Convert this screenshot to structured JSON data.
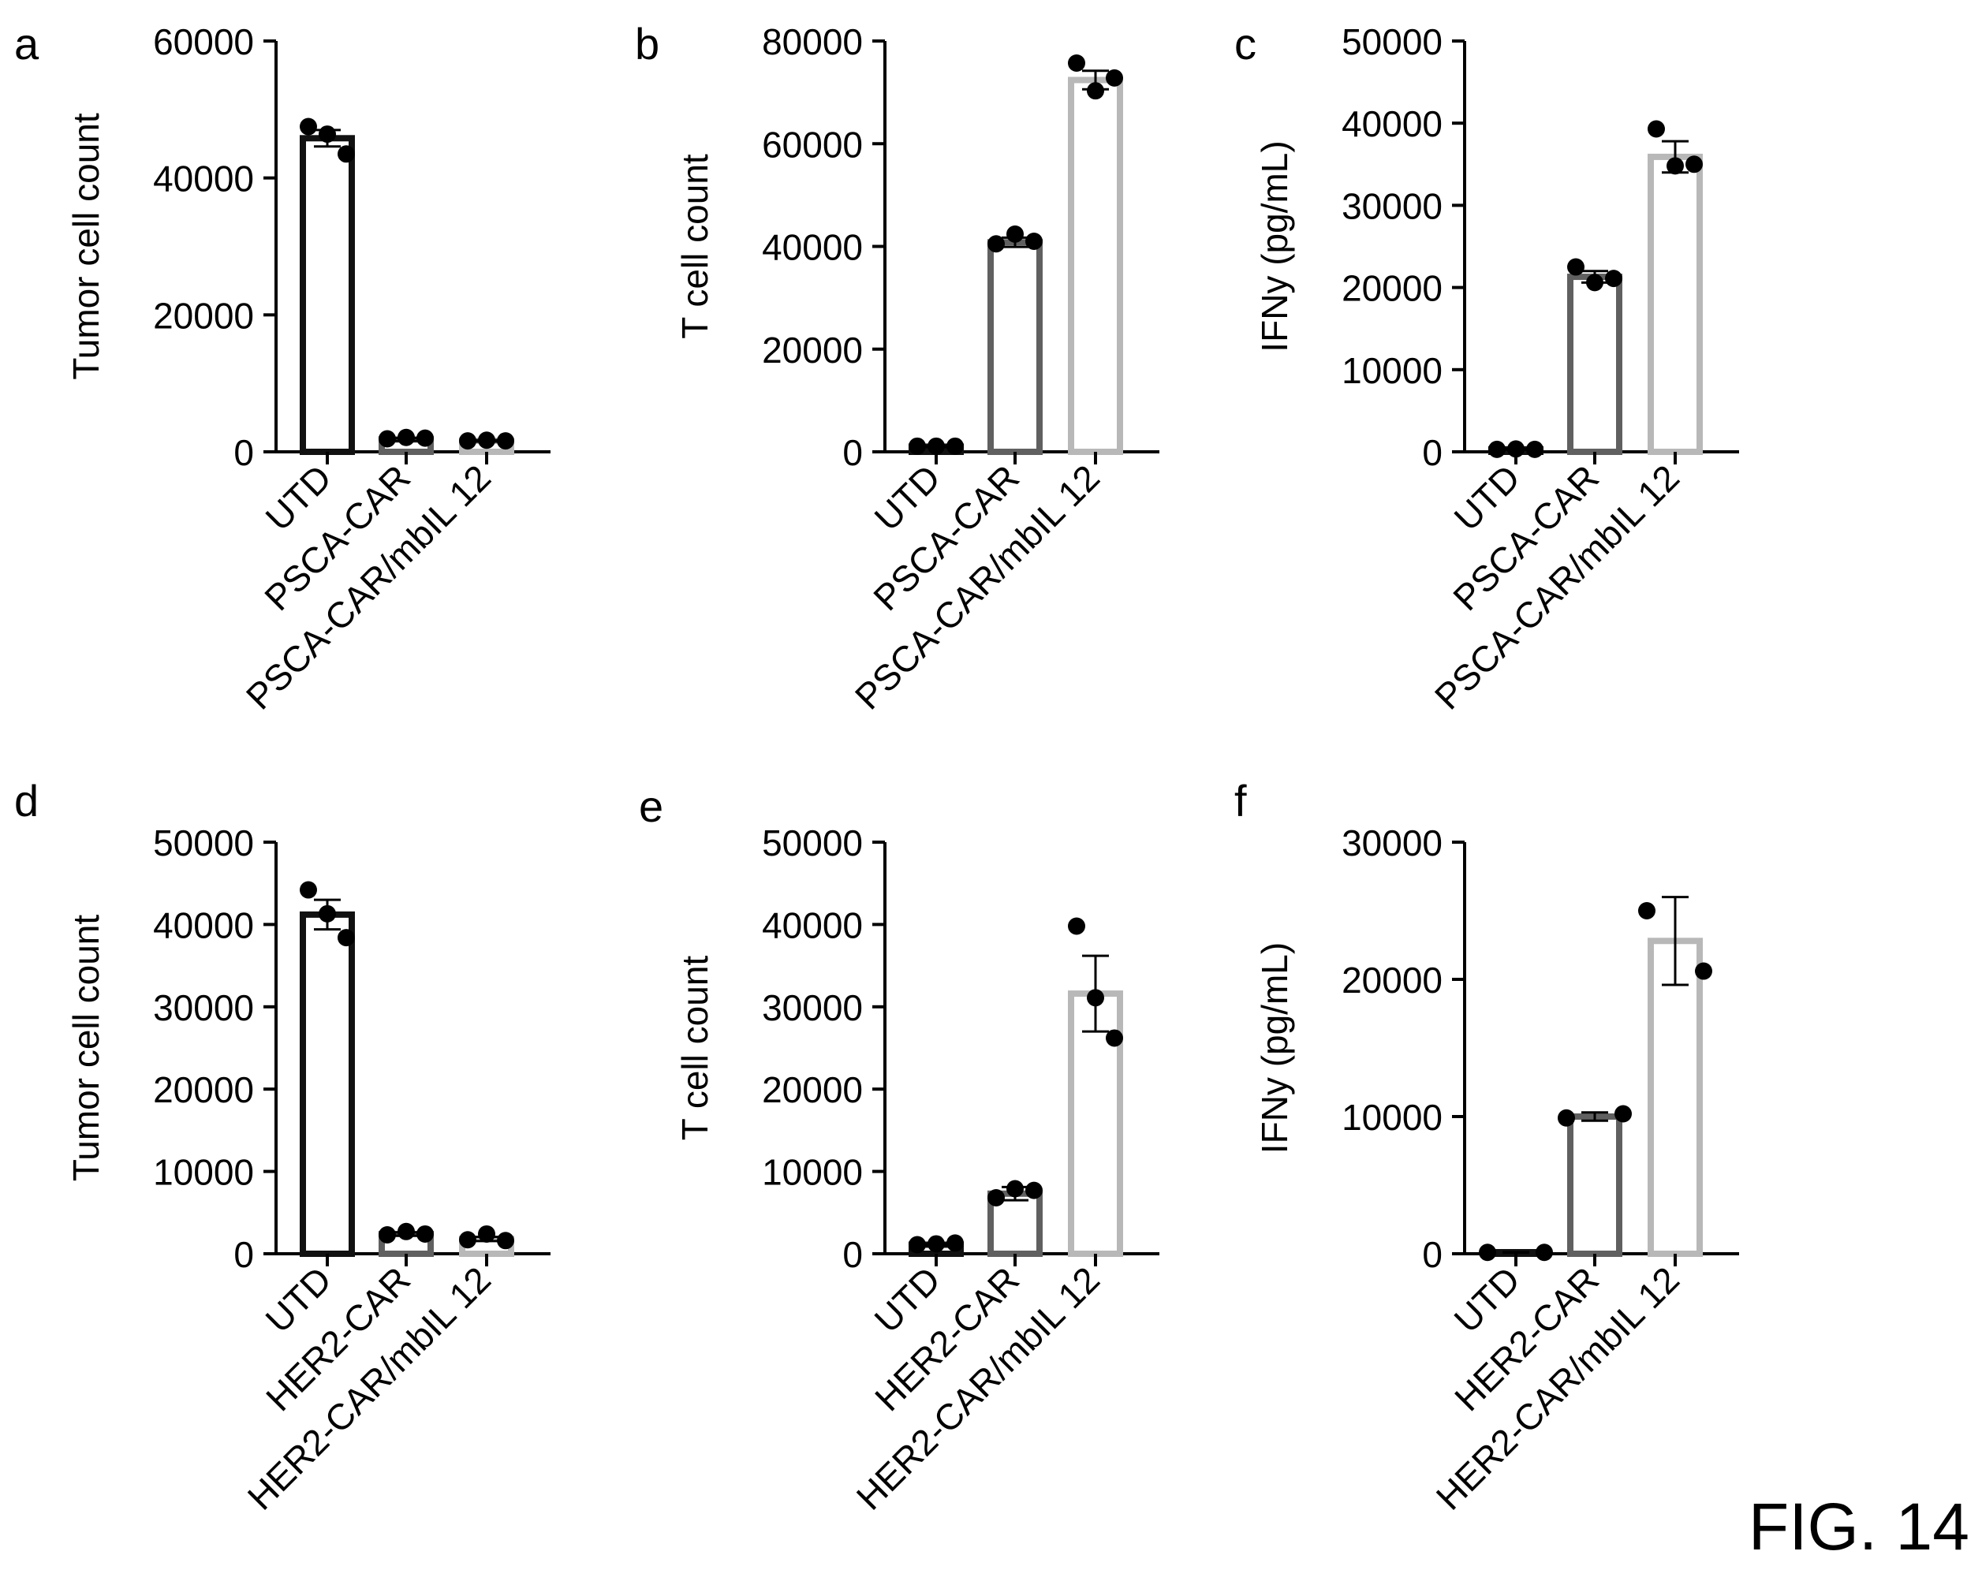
{
  "figure_label": "FIG. 14",
  "styles": {
    "utd_color": "#111111",
    "car_color": "#606060",
    "mbil_color": "#b8b8b8",
    "dot_color": "#000000"
  },
  "chart_data": [
    {
      "panel": "a",
      "type": "bar",
      "ylabel": "Tumor cell count",
      "ylim": [
        0,
        60000
      ],
      "yticks": [
        0,
        20000,
        40000,
        60000
      ],
      "categories": [
        "UTD",
        "PSCA-CAR",
        "PSCA-CAR/mbIL 12"
      ],
      "values": [
        45800,
        1800,
        1600
      ],
      "errors": [
        1200,
        200,
        120
      ],
      "points": [
        [
          47500,
          46400,
          43500
        ],
        [
          1900,
          2100,
          2000
        ],
        [
          1600,
          1700,
          1600
        ]
      ]
    },
    {
      "panel": "b",
      "type": "bar",
      "ylabel": "T cell count",
      "ylim": [
        0,
        80000
      ],
      "yticks": [
        0,
        20000,
        40000,
        60000,
        80000
      ],
      "categories": [
        "UTD",
        "PSCA-CAR",
        "PSCA-CAR/mbIL 12"
      ],
      "values": [
        1000,
        40800,
        72400
      ],
      "errors": [
        80,
        900,
        1800
      ],
      "points": [
        [
          1100,
          1100,
          1100
        ],
        [
          40500,
          42400,
          41000
        ],
        [
          75700,
          70300,
          72800
        ]
      ]
    },
    {
      "panel": "c",
      "type": "bar",
      "ylabel": "IFNy (pg/mL)",
      "ylim": [
        0,
        50000
      ],
      "yticks": [
        0,
        10000,
        20000,
        30000,
        40000,
        50000
      ],
      "categories": [
        "UTD",
        "PSCA-CAR",
        "PSCA-CAR/mbIL 12"
      ],
      "values": [
        300,
        21300,
        35900
      ],
      "errors": [
        40,
        700,
        1900
      ],
      "points": [
        [
          300,
          350,
          300
        ],
        [
          22500,
          20600,
          21100
        ],
        [
          39300,
          34800,
          35000
        ]
      ]
    },
    {
      "panel": "d",
      "type": "bar",
      "ylabel": "Tumor cell count",
      "ylim": [
        0,
        50000
      ],
      "yticks": [
        0,
        10000,
        20000,
        30000,
        40000,
        50000
      ],
      "categories": [
        "UTD",
        "HER2-CAR",
        "HER2-CAR/mbIL 12"
      ],
      "values": [
        41200,
        2400,
        1800
      ],
      "errors": [
        1800,
        200,
        250
      ],
      "points": [
        [
          44200,
          41300,
          38400
        ],
        [
          2300,
          2700,
          2400
        ],
        [
          1700,
          2400,
          1600
        ]
      ]
    },
    {
      "panel": "e",
      "type": "bar",
      "ylabel": "T cell count",
      "ylim": [
        0,
        50000
      ],
      "yticks": [
        0,
        10000,
        20000,
        30000,
        40000,
        50000
      ],
      "categories": [
        "UTD",
        "HER2-CAR",
        "HER2-CAR/mbIL 12"
      ],
      "values": [
        1100,
        7300,
        31600
      ],
      "errors": [
        100,
        800,
        4600
      ],
      "points": [
        [
          1100,
          1200,
          1300
        ],
        [
          6800,
          7900,
          7700
        ],
        [
          39800,
          31100,
          26200
        ]
      ]
    },
    {
      "panel": "f",
      "type": "bar",
      "ylabel": "IFNy (pg/mL)",
      "ylim": [
        0,
        30000
      ],
      "yticks": [
        0,
        10000,
        20000,
        30000
      ],
      "categories": [
        "UTD",
        "HER2-CAR",
        "HER2-CAR/mbIL 12"
      ],
      "values": [
        100,
        10000,
        22800
      ],
      "errors": [
        20,
        300,
        3200
      ],
      "points": [
        [
          100,
          100
        ],
        [
          9900,
          10200
        ],
        [
          25000,
          20600
        ]
      ]
    }
  ]
}
